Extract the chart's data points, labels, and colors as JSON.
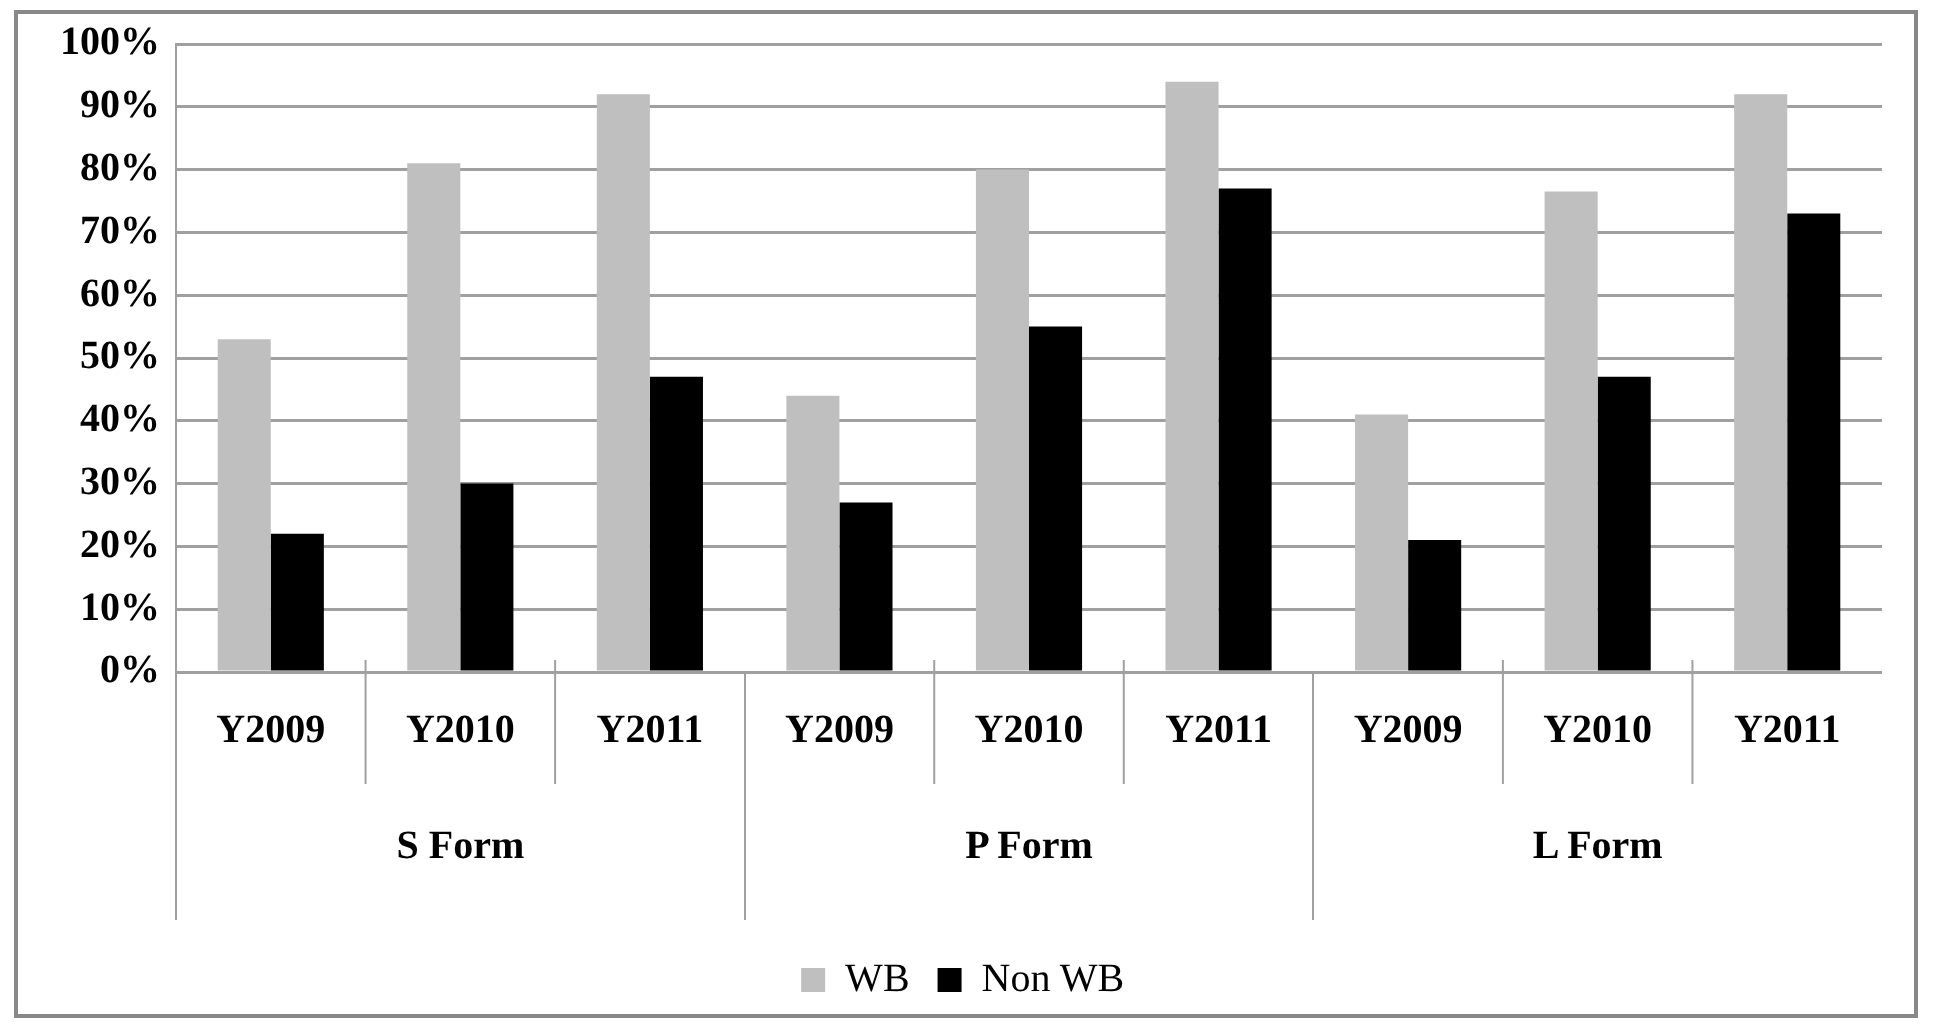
{
  "chart_data": {
    "type": "bar",
    "categories": [
      "Y2009",
      "Y2010",
      "Y2011",
      "Y2009",
      "Y2010",
      "Y2011",
      "Y2009",
      "Y2010",
      "Y2011"
    ],
    "series": [
      {
        "name": "WB",
        "color": "#bfbfbf",
        "values": [
          53,
          81,
          92,
          44,
          80,
          94,
          41,
          76.5,
          92
        ]
      },
      {
        "name": "Non WB",
        "color": "#000000",
        "values": [
          22,
          30,
          47,
          27,
          55,
          77,
          21,
          47,
          73
        ]
      }
    ],
    "annotations": [
      "S Form",
      "P Form",
      "L Form"
    ],
    "ylim": [
      0,
      100
    ],
    "yticks": [
      {
        "value": 0,
        "label": "0%"
      },
      {
        "value": 10,
        "label": "10%"
      },
      {
        "value": 20,
        "label": "20%"
      },
      {
        "value": 30,
        "label": "30%"
      },
      {
        "value": 40,
        "label": "40%"
      },
      {
        "value": 50,
        "label": "50%"
      },
      {
        "value": 60,
        "label": "60%"
      },
      {
        "value": 70,
        "label": "70%"
      },
      {
        "value": 80,
        "label": "80%"
      },
      {
        "value": 90,
        "label": "90%"
      },
      {
        "value": 100,
        "label": "100%"
      }
    ],
    "grid": "y",
    "legend": "bottom"
  }
}
